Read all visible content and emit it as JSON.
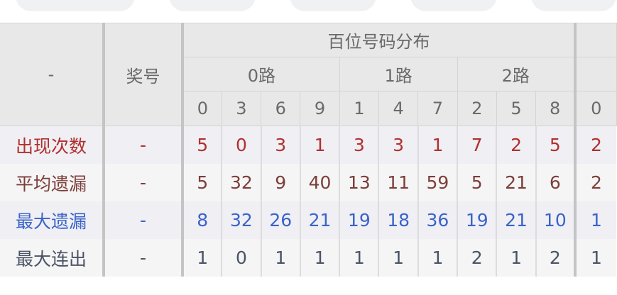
{
  "top_tabs": [
    "",
    "",
    "",
    "",
    ""
  ],
  "header": {
    "corner": "-",
    "prize_label": "奖号",
    "group_title": "百位号码分布",
    "routes": [
      "0路",
      "1路",
      "2路"
    ],
    "digits": [
      "0",
      "3",
      "6",
      "9",
      "1",
      "4",
      "7",
      "2",
      "5",
      "8",
      "0"
    ]
  },
  "rows": [
    {
      "label": "出现次数",
      "prize": "-",
      "values": [
        "5",
        "0",
        "3",
        "1",
        "3",
        "3",
        "1",
        "7",
        "2",
        "5",
        "2"
      ],
      "color": "#b0302e"
    },
    {
      "label": "平均遗漏",
      "prize": "-",
      "values": [
        "5",
        "32",
        "9",
        "40",
        "13",
        "11",
        "59",
        "5",
        "21",
        "6",
        "2"
      ],
      "color": "#7c3e3a"
    },
    {
      "label": "最大遗漏",
      "prize": "-",
      "values": [
        "8",
        "32",
        "26",
        "21",
        "19",
        "18",
        "36",
        "19",
        "21",
        "10",
        "1"
      ],
      "color": "#3b63c8"
    },
    {
      "label": "最大连出",
      "prize": "-",
      "values": [
        "1",
        "0",
        "1",
        "1",
        "1",
        "1",
        "1",
        "2",
        "1",
        "2",
        "1"
      ],
      "color": "#4a5366"
    }
  ]
}
